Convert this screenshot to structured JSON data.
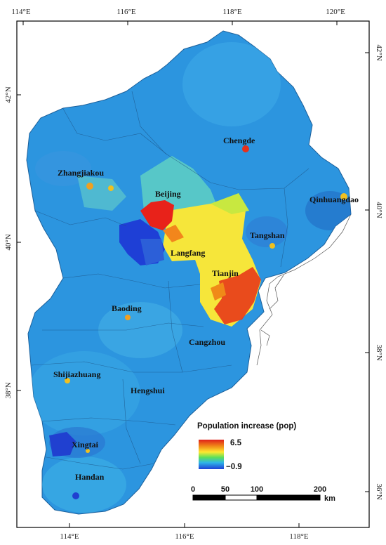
{
  "map": {
    "lon_ticks_top": [
      "114°E",
      "116°E",
      "118°E",
      "120°E"
    ],
    "lon_ticks_bottom": [
      "114°E",
      "116°E",
      "118°E"
    ],
    "lat_ticks_left": [
      "42°N",
      "40°N",
      "38°N"
    ],
    "lat_ticks_right": [
      "42°N",
      "40°N",
      "38°N",
      "36°N"
    ],
    "cities": [
      "Chengde",
      "Zhangjiakou",
      "Beijing",
      "Qinhuangdao",
      "Tangshan",
      "Langfang",
      "Tianjin",
      "Baoding",
      "Cangzhou",
      "Shijiazhuang",
      "Hengshui",
      "Xingtai",
      "Handan"
    ]
  },
  "legend": {
    "title": "Population increase (pop)",
    "max": "6.5",
    "min": "−0.9",
    "colors": [
      "#e0201a",
      "#f08a18",
      "#ffe830",
      "#5de05a",
      "#2fb4e8",
      "#1e3fd6"
    ]
  },
  "scale_bar": {
    "labels": [
      "0",
      "50",
      "100",
      "200"
    ],
    "unit": "km"
  },
  "colors": {
    "base": "#2c95df",
    "frame": "#000000"
  }
}
